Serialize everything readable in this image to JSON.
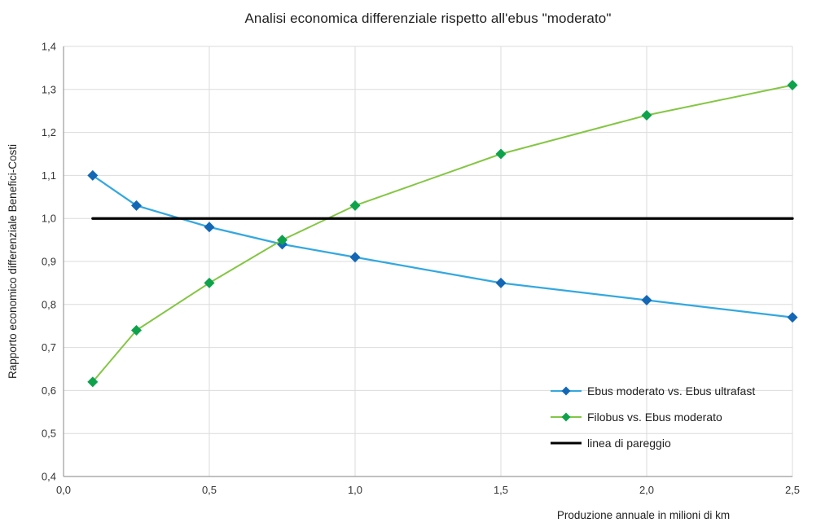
{
  "chart_data": {
    "type": "line",
    "title": "Analisi economica differenziale rispetto all'ebus \"moderato\"",
    "xlabel": "Produzione annuale in milioni di km",
    "ylabel": "Rapporto economico differenziale Benefici-Costi",
    "x": [
      0.1,
      0.25,
      0.5,
      0.75,
      1.0,
      1.5,
      2.0,
      2.5
    ],
    "series": [
      {
        "name": "Ebus moderato vs. Ebus ultrafast",
        "values": [
          1.1,
          1.03,
          0.98,
          0.94,
          0.91,
          0.85,
          0.81,
          0.77
        ],
        "line_color": "#33A8DF",
        "marker_color": "#1467B4",
        "marker": "diamond",
        "stroke_width": 2.25
      },
      {
        "name": "Filobus vs. Ebus moderato",
        "values": [
          0.62,
          0.74,
          0.85,
          0.95,
          1.03,
          1.15,
          1.24,
          1.31
        ],
        "line_color": "#84C643",
        "marker_color": "#0EA24D",
        "marker": "diamond",
        "stroke_width": 2
      },
      {
        "name": "linea di pareggio",
        "values": [
          1.0,
          1.0,
          1.0,
          1.0,
          1.0,
          1.0,
          1.0,
          1.0
        ],
        "line_color": "#000000",
        "marker": "none",
        "stroke_width": 3.25
      }
    ],
    "xlim": [
      0,
      2.5
    ],
    "ylim": [
      0.4,
      1.4
    ],
    "x_ticks": [
      "0,0",
      "0,5",
      "1,0",
      "1,5",
      "2,0",
      "2,5"
    ],
    "y_ticks": [
      "0,4",
      "0,5",
      "0,6",
      "0,7",
      "0,8",
      "0,9",
      "1,0",
      "1,1",
      "1,2",
      "1,3",
      "1,4"
    ],
    "grid": true,
    "legend_position": "inside lower right",
    "grid_color": "#DBDBDB",
    "axis_color": "#9B9B9B",
    "tick_color": "#333333"
  }
}
